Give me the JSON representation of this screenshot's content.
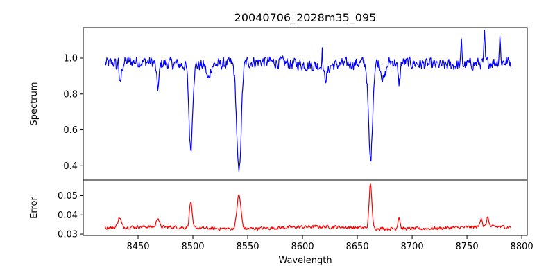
{
  "chart_data": {
    "type": "line",
    "title": "20040706_2028m35_095",
    "xlabel": "Wavelength",
    "xlim": [
      8400,
      8805
    ],
    "xticks": [
      8450,
      8500,
      8550,
      8600,
      8650,
      8700,
      8750,
      8800
    ],
    "colors": {
      "spectrum": "#0000ff",
      "error": "#ff0000"
    },
    "panels": [
      {
        "name": "spectrum",
        "ylabel": "Spectrum",
        "ylim": [
          0.32,
          1.17
        ],
        "yticks": [
          0.4,
          0.6,
          0.8,
          1.0
        ],
        "ytick_labels": [
          "0.4",
          "0.6",
          "0.8",
          "1.0"
        ],
        "baseline": 0.97,
        "noise": 0.045,
        "x_range": [
          8420,
          8790
        ],
        "features": [
          {
            "x": 8433,
            "depth": 0.14,
            "width": 1.5
          },
          {
            "x": 8498,
            "depth": 0.47,
            "width": 1.6
          },
          {
            "x": 8542,
            "depth": 0.62,
            "width": 2.0
          },
          {
            "x": 8662,
            "depth": 0.55,
            "width": 1.8
          },
          {
            "x": 8688,
            "depth": 0.12,
            "width": 1.0
          },
          {
            "x": 8468,
            "depth": 0.14,
            "width": 1.2
          },
          {
            "x": 8514,
            "depth": 0.08,
            "width": 1.5
          },
          {
            "x": 8621,
            "depth": 0.07,
            "width": 2.0
          },
          {
            "x": 8674,
            "depth": 0.1,
            "width": 2.0
          }
        ],
        "spikes": [
          {
            "x": 8432,
            "height": 0.15
          },
          {
            "x": 8618,
            "height": 0.11
          },
          {
            "x": 8745,
            "height": 0.12
          },
          {
            "x": 8766,
            "height": 0.15
          },
          {
            "x": 8780,
            "height": 0.15
          }
        ]
      },
      {
        "name": "error",
        "ylabel": "Error",
        "ylim": [
          0.0293,
          0.0581
        ],
        "yticks": [
          0.03,
          0.04,
          0.05
        ],
        "ytick_labels": [
          "0.03",
          "0.04",
          "0.05"
        ],
        "baseline": 0.0333,
        "noise": 0.0012,
        "x_range": [
          8420,
          8790
        ],
        "features": [
          {
            "x": 8433,
            "height": 0.005,
            "width": 1.5
          },
          {
            "x": 8468,
            "height": 0.005,
            "width": 1.2
          },
          {
            "x": 8498,
            "height": 0.0135,
            "width": 1.2
          },
          {
            "x": 8542,
            "height": 0.0175,
            "width": 1.8
          },
          {
            "x": 8662,
            "height": 0.0235,
            "width": 1.2
          },
          {
            "x": 8688,
            "height": 0.006,
            "width": 1.0
          },
          {
            "x": 8763,
            "height": 0.005,
            "width": 1.0
          },
          {
            "x": 8769,
            "height": 0.005,
            "width": 1.0
          }
        ]
      }
    ]
  }
}
